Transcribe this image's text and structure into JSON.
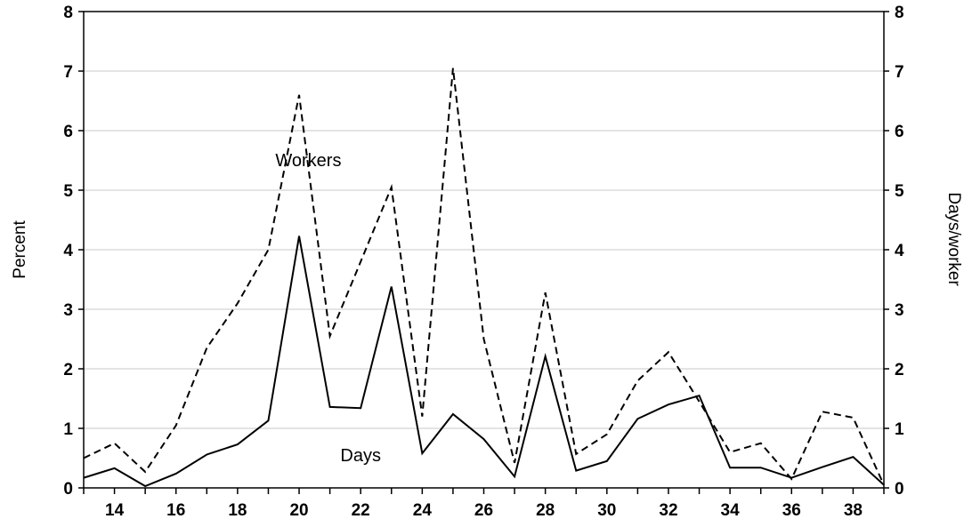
{
  "chart_data": {
    "type": "line",
    "x": [
      13,
      14,
      15,
      16,
      17,
      18,
      19,
      20,
      21,
      22,
      23,
      24,
      25,
      26,
      27,
      28,
      29,
      30,
      31,
      32,
      33,
      34,
      35,
      36,
      37,
      38,
      39
    ],
    "x_range": [
      13,
      39
    ],
    "x_tick_values": [
      14,
      16,
      18,
      20,
      22,
      24,
      26,
      28,
      30,
      32,
      34,
      36,
      38
    ],
    "x_tick_labels": [
      "14",
      "16",
      "18",
      "20",
      "22",
      "24",
      "26",
      "28",
      "30",
      "32",
      "34",
      "36",
      "38"
    ],
    "ylim": [
      0,
      8
    ],
    "y_tick_values": [
      0,
      1,
      2,
      3,
      4,
      5,
      6,
      7,
      8
    ],
    "y_tick_labels": [
      "0",
      "1",
      "2",
      "3",
      "4",
      "5",
      "6",
      "7",
      "8"
    ],
    "y2lim": [
      0,
      8
    ],
    "y2_tick_labels": [
      "0",
      "1",
      "2",
      "3",
      "4",
      "5",
      "6",
      "7",
      "8"
    ],
    "ylabel": "Percent",
    "y2label": "Days/worker",
    "grid": true,
    "series": [
      {
        "key": "workers",
        "style": "dashed",
        "color": "#000000",
        "label": "Workers",
        "values": [
          0.5,
          0.75,
          0.27,
          1.05,
          2.35,
          3.1,
          4.0,
          6.6,
          2.55,
          3.8,
          5.05,
          1.2,
          7.05,
          2.5,
          0.42,
          3.28,
          0.57,
          0.9,
          1.8,
          2.28,
          1.45,
          0.6,
          0.75,
          0.15,
          1.28,
          1.18,
          0.05
        ]
      },
      {
        "key": "days",
        "style": "solid",
        "color": "#000000",
        "label": "Days",
        "values": [
          0.17,
          0.33,
          0.03,
          0.24,
          0.56,
          0.73,
          1.13,
          4.23,
          1.36,
          1.34,
          3.38,
          0.58,
          1.24,
          0.82,
          0.19,
          2.21,
          0.29,
          0.45,
          1.16,
          1.4,
          1.55,
          0.34,
          0.34,
          0.17,
          0.35,
          0.52,
          0.05
        ]
      }
    ],
    "annotations": [
      {
        "text": "Workers",
        "x": 20.3,
        "y": 5.4
      },
      {
        "text": "Days",
        "x": 22.0,
        "y": 0.45
      }
    ]
  }
}
